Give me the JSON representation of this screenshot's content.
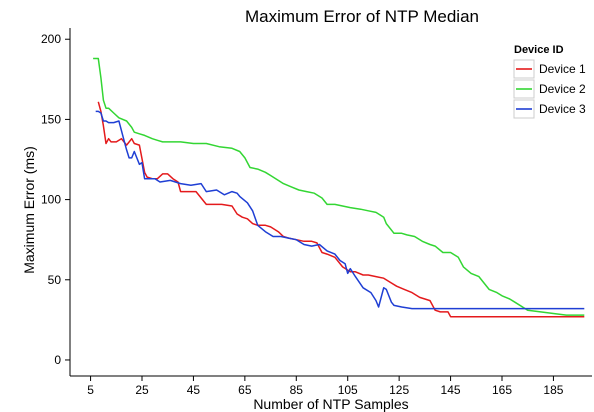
{
  "chart_data": {
    "type": "line",
    "title": "Maximum Error of NTP Median",
    "xlabel": "Number of NTP Samples",
    "ylabel": "Maximum Error (ms)",
    "xlim": [
      -3,
      200
    ],
    "ylim": [
      -10,
      207
    ],
    "xticks": [
      5,
      25,
      45,
      65,
      85,
      105,
      125,
      145,
      165,
      185
    ],
    "yticks": [
      0,
      50,
      100,
      150,
      200
    ],
    "grid": false,
    "legend": {
      "title": "Device ID",
      "placement": "top-right"
    },
    "series": [
      {
        "name": "Device 1",
        "color": "#e41a1c",
        "x": [
          8,
          9,
          10,
          11,
          12,
          13,
          15,
          17,
          19,
          21,
          22,
          24,
          26,
          27,
          29,
          31,
          33,
          35,
          37,
          39,
          40,
          42,
          45,
          46,
          50,
          53,
          56,
          60,
          62,
          64,
          66,
          68,
          70,
          73,
          75,
          78,
          80,
          82,
          85,
          88,
          91,
          93,
          95,
          97,
          100,
          103,
          106,
          108,
          111,
          113,
          116,
          119,
          122,
          124,
          127,
          130,
          133,
          135,
          137,
          139,
          141,
          144,
          145,
          150,
          160,
          170,
          180,
          190,
          197
        ],
        "y": [
          161,
          155,
          146,
          135,
          138,
          136,
          136,
          138,
          134,
          138,
          135,
          134,
          117,
          114,
          113,
          113,
          116,
          116,
          113,
          111,
          105,
          105,
          105,
          105,
          97,
          97,
          97,
          96,
          91,
          89,
          88,
          85,
          84,
          84,
          83,
          80,
          77,
          76,
          75,
          74,
          74,
          73,
          67,
          66,
          64,
          58,
          55,
          55,
          53,
          53,
          52,
          51,
          48,
          46,
          44,
          42,
          39,
          38,
          37,
          31,
          30,
          30,
          27,
          27,
          27,
          27,
          27,
          27,
          27
        ]
      },
      {
        "name": "Device 2",
        "color": "#33d633",
        "x": [
          6,
          8,
          9,
          10,
          11,
          12,
          14,
          16,
          19,
          21,
          22,
          24,
          26,
          29,
          31,
          33,
          36,
          40,
          45,
          50,
          55,
          60,
          63,
          65,
          67,
          70,
          73,
          75,
          78,
          80,
          83,
          86,
          89,
          92,
          95,
          97,
          100,
          103,
          106,
          110,
          113,
          116,
          119,
          120,
          123,
          126,
          128,
          131,
          134,
          137,
          139,
          142,
          145,
          148,
          150,
          153,
          156,
          158,
          160,
          163,
          165,
          168,
          170,
          175,
          180,
          185,
          190,
          197
        ],
        "y": [
          188,
          188,
          176,
          162,
          157,
          157,
          154,
          151,
          149,
          145,
          142,
          141,
          140,
          138,
          137,
          136,
          136,
          136,
          135,
          135,
          133,
          132,
          130,
          126,
          120,
          119,
          117,
          115,
          112,
          110,
          108,
          106,
          105,
          104,
          101,
          97,
          97,
          96,
          95,
          94,
          93,
          92,
          89,
          85,
          79,
          79,
          78,
          77,
          74,
          72,
          71,
          67,
          67,
          64,
          58,
          54,
          52,
          48,
          44,
          42,
          40,
          38,
          36,
          31,
          30,
          29,
          28,
          28
        ]
      },
      {
        "name": "Device 3",
        "color": "#1f3fd4",
        "x": [
          7,
          8,
          9,
          10,
          11,
          12,
          14,
          16,
          18,
          19,
          20,
          21,
          22,
          24,
          25,
          26,
          28,
          30,
          32,
          36,
          40,
          44,
          48,
          50,
          54,
          57,
          60,
          62,
          63,
          66,
          68,
          70,
          73,
          76,
          79,
          82,
          85,
          88,
          91,
          94,
          97,
          100,
          102,
          104,
          105,
          106,
          108,
          111,
          114,
          116,
          117,
          119,
          120,
          122,
          123,
          126,
          130,
          135,
          140,
          145,
          150,
          160,
          170,
          180,
          190,
          197
        ],
        "y": [
          155,
          155,
          154,
          149,
          149,
          148,
          148,
          149,
          137,
          131,
          126,
          126,
          130,
          122,
          123,
          113,
          113,
          113,
          111,
          112,
          110,
          109,
          110,
          105,
          106,
          103,
          105,
          104,
          102,
          98,
          93,
          84,
          80,
          77,
          77,
          76,
          75,
          72,
          71,
          72,
          68,
          66,
          62,
          60,
          54,
          57,
          52,
          45,
          42,
          37,
          33,
          45,
          44,
          36,
          34,
          33,
          32,
          32,
          32,
          32,
          32,
          32,
          32,
          32,
          32,
          32
        ]
      }
    ]
  }
}
